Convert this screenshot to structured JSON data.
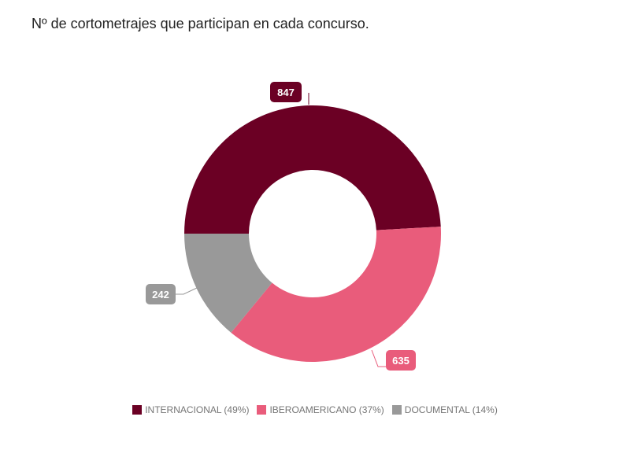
{
  "title": "Nº de cortometrajes que participan en cada concurso.",
  "chart_data": {
    "type": "pie",
    "subtype": "donut",
    "title": "Nº de cortometrajes que participan en cada concurso.",
    "categories": [
      "INTERNACIONAL",
      "IBEROAMERICANO",
      "DOCUMENTAL"
    ],
    "values": [
      847,
      635,
      242
    ],
    "percentages": [
      49,
      37,
      14
    ],
    "colors": [
      "#6b0024",
      "#e95c7b",
      "#999999"
    ],
    "legend_position": "bottom"
  },
  "legend": [
    {
      "label": "INTERNACIONAL (49%)",
      "color": "#6b0024"
    },
    {
      "label": "IBEROAMERICANO (37%)",
      "color": "#e95c7b"
    },
    {
      "label": "DOCUMENTAL (14%)",
      "color": "#999999"
    }
  ]
}
